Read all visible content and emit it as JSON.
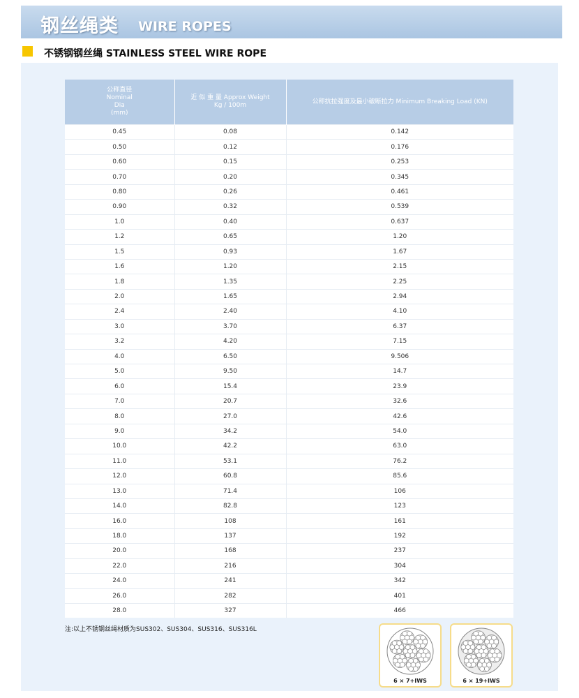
{
  "header": {
    "title_cn": "钢丝绳类",
    "title_en": "WIRE ROPES"
  },
  "section": {
    "title": "不锈钢钢丝绳 STAINLESS STEEL WIRE ROPE"
  },
  "table": {
    "columns": [
      [
        "公称直径",
        "Nominal",
        "Dia",
        "(mm)"
      ],
      [
        "近 似 重 量 Approx Weight",
        "Kg / 100m"
      ],
      [
        "公称抗拉强度及最小破断拉力 Minimum Breaking Load (KN)"
      ]
    ],
    "rows": [
      [
        "0.45",
        "0.08",
        "0.142"
      ],
      [
        "0.50",
        "0.12",
        "0.176"
      ],
      [
        "0.60",
        "0.15",
        "0.253"
      ],
      [
        "0.70",
        "0.20",
        "0.345"
      ],
      [
        "0.80",
        "0.26",
        "0.461"
      ],
      [
        "0.90",
        "0.32",
        "0.539"
      ],
      [
        "1.0",
        "0.40",
        "0.637"
      ],
      [
        "1.2",
        "0.65",
        "1.20"
      ],
      [
        "1.5",
        "0.93",
        "1.67"
      ],
      [
        "1.6",
        "1.20",
        "2.15"
      ],
      [
        "1.8",
        "1.35",
        "2.25"
      ],
      [
        "2.0",
        "1.65",
        "2.94"
      ],
      [
        "2.4",
        "2.40",
        "4.10"
      ],
      [
        "3.0",
        "3.70",
        "6.37"
      ],
      [
        "3.2",
        "4.20",
        "7.15"
      ],
      [
        "4.0",
        "6.50",
        "9.506"
      ],
      [
        "5.0",
        "9.50",
        "14.7"
      ],
      [
        "6.0",
        "15.4",
        "23.9"
      ],
      [
        "7.0",
        "20.7",
        "32.6"
      ],
      [
        "8.0",
        "27.0",
        "42.6"
      ],
      [
        "9.0",
        "34.2",
        "54.0"
      ],
      [
        "10.0",
        "42.2",
        "63.0"
      ],
      [
        "11.0",
        "53.1",
        "76.2"
      ],
      [
        "12.0",
        "60.8",
        "85.6"
      ],
      [
        "13.0",
        "71.4",
        "106"
      ],
      [
        "14.0",
        "82.8",
        "123"
      ],
      [
        "16.0",
        "108",
        "161"
      ],
      [
        "18.0",
        "137",
        "192"
      ],
      [
        "20.0",
        "168",
        "237"
      ],
      [
        "22.0",
        "216",
        "304"
      ],
      [
        "24.0",
        "241",
        "342"
      ],
      [
        "26.0",
        "282",
        "401"
      ],
      [
        "28.0",
        "327",
        "466"
      ]
    ]
  },
  "note": "注:以上不锈钢丝绳材质为SUS302、SUS304、SUS316、SUS316L",
  "images": [
    {
      "caption": "6 × 7+IWS"
    },
    {
      "caption": "6 × 19+IWS"
    }
  ]
}
